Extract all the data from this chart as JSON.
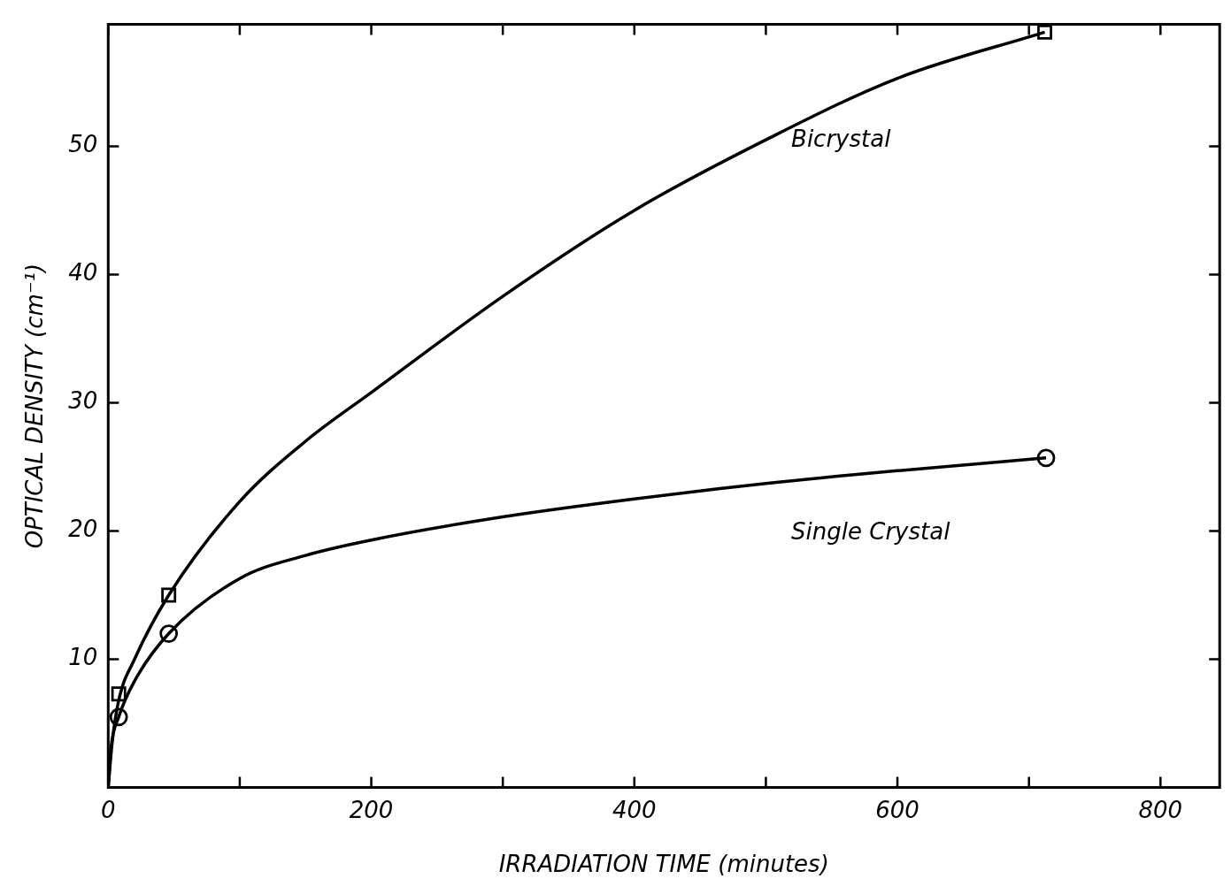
{
  "chart_data": {
    "type": "line",
    "xlabel": "IRRADIATION TIME (minutes)",
    "ylabel": "OPTICAL DENSITY (cm⁻¹)",
    "xlim": [
      0,
      845
    ],
    "xticks": [
      0,
      {
        "value": 100,
        "label": null
      },
      200,
      {
        "value": 300,
        "label": null
      },
      400,
      {
        "value": 500,
        "label": null
      },
      600,
      {
        "value": 700,
        "label": null
      },
      800
    ],
    "ylim": [
      0,
      59.5
    ],
    "yticks": [
      {
        "value": 0,
        "label": null
      },
      10,
      20,
      30,
      40,
      50
    ],
    "series": [
      {
        "name": "Bicrystal",
        "color": "#000000",
        "marker": "none",
        "x": [
          0,
          3,
          8,
          20,
          46,
          100,
          150,
          200,
          300,
          400,
          500,
          600,
          712
        ],
        "values": [
          0,
          3.5,
          6.8,
          10,
          15,
          22.3,
          27,
          30.8,
          38.3,
          45,
          50.5,
          55.3,
          58.9
        ]
      },
      {
        "name": "Single Crystal",
        "color": "#000000",
        "marker": "none",
        "x": [
          0,
          2,
          8,
          20,
          46,
          100,
          150,
          200,
          300,
          400,
          500,
          600,
          713
        ],
        "values": [
          0,
          3,
          5.5,
          8.3,
          12,
          16.3,
          18.1,
          19.3,
          21.1,
          22.5,
          23.7,
          24.7,
          25.7
        ]
      },
      {
        "type": "scatter",
        "color": "#000000",
        "marker": "square",
        "x": [
          8,
          46,
          712
        ],
        "values": [
          7.3,
          15,
          58.9
        ]
      },
      {
        "type": "scatter",
        "color": "#000000",
        "marker": "circle",
        "x": [
          8,
          46,
          713
        ],
        "values": [
          5.5,
          12,
          25.7
        ]
      }
    ]
  }
}
